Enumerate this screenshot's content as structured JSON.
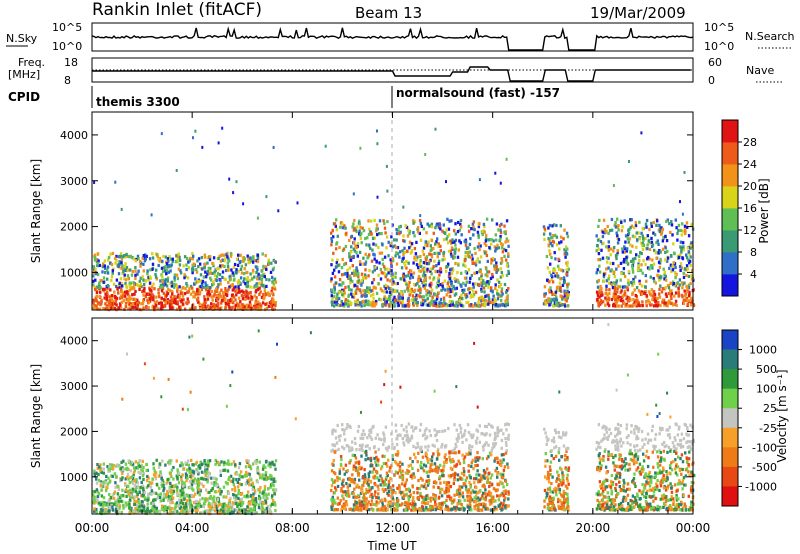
{
  "header": {
    "station": "Rankin Inlet (fitACF)",
    "beam": "Beam 13",
    "date": "19/Mar/2009"
  },
  "noise_panel": {
    "left_label": "N.Sky",
    "left_ticks": [
      "10^5",
      "10^0"
    ],
    "right_ticks": [
      "10^5",
      "10^0"
    ],
    "right_label": "N.Search"
  },
  "freq_panel": {
    "left_label_1": "Freq.",
    "left_label_2": "[MHz]",
    "left_ticks": [
      "18",
      "8"
    ],
    "right_ticks": [
      "60",
      "0"
    ],
    "right_label": "Nave"
  },
  "cpid": {
    "label": "CPID",
    "mode_1": "themis 3300",
    "mode_2": "normalsound (fast) -157"
  },
  "chart_data": [
    {
      "type": "heatmap",
      "panel": "power",
      "ylabel": "Slant Range [km]",
      "yticks": [
        "1000",
        "2000",
        "3000",
        "4000"
      ],
      "ylim": [
        180,
        4500
      ],
      "colorbar_label": "Power [dB]",
      "colorbar_ticks": [
        "4",
        "8",
        "12",
        "16",
        "20",
        "24",
        "28"
      ],
      "colorbar_colors": [
        "#1515e0",
        "#2f6fc7",
        "#3a9a74",
        "#5fbf55",
        "#d9d41a",
        "#f29218",
        "#ee5a1a",
        "#e01414"
      ],
      "scatter_regions": [
        {
          "t0": 0.0,
          "t1": 7.3,
          "r0": 200,
          "r1": 1450,
          "level": "high"
        },
        {
          "t0": 9.5,
          "t1": 16.6,
          "r0": 300,
          "r1": 2200,
          "level": "mid"
        },
        {
          "t0": 18.0,
          "t1": 19.0,
          "r0": 300,
          "r1": 2100,
          "level": "mid"
        },
        {
          "t0": 20.1,
          "t1": 24.0,
          "r0": 300,
          "r1": 2200,
          "level": "high"
        }
      ]
    },
    {
      "type": "heatmap",
      "panel": "velocity",
      "ylabel": "Slant Range [km]",
      "yticks": [
        "1000",
        "2000",
        "3000",
        "4000"
      ],
      "ylim": [
        180,
        4500
      ],
      "colorbar_label": "Velocity [m s⁻¹]",
      "colorbar_ticks": [
        "1000",
        "500",
        "100",
        "25",
        "-25",
        "-100",
        "-500",
        "-1000"
      ],
      "colorbar_colors": [
        "#1a44c4",
        "#2a7c78",
        "#2f9a3a",
        "#6fd04a",
        "#c4c4c0",
        "#f6a02a",
        "#ee7a18",
        "#e84814",
        "#e01010"
      ],
      "scatter_regions": [
        {
          "t0": 0.0,
          "t1": 7.3,
          "r0": 200,
          "r1": 1400,
          "level": "green"
        },
        {
          "t0": 9.5,
          "t1": 16.6,
          "r0": 300,
          "r1": 2200,
          "level": "orange"
        },
        {
          "t0": 18.0,
          "t1": 19.0,
          "r0": 300,
          "r1": 2100,
          "level": "orange"
        },
        {
          "t0": 20.1,
          "t1": 24.0,
          "r0": 300,
          "r1": 2200,
          "level": "mixed"
        }
      ]
    }
  ],
  "time_axis": {
    "xlabel": "Time UT",
    "ticks": [
      "00:00",
      "04:00",
      "08:00",
      "12:00",
      "16:00",
      "20:00",
      "00:00"
    ],
    "xlim_hours": [
      0,
      24
    ],
    "gaps_hours": [
      [
        16.6,
        18.0
      ],
      [
        19.0,
        20.1
      ]
    ]
  }
}
